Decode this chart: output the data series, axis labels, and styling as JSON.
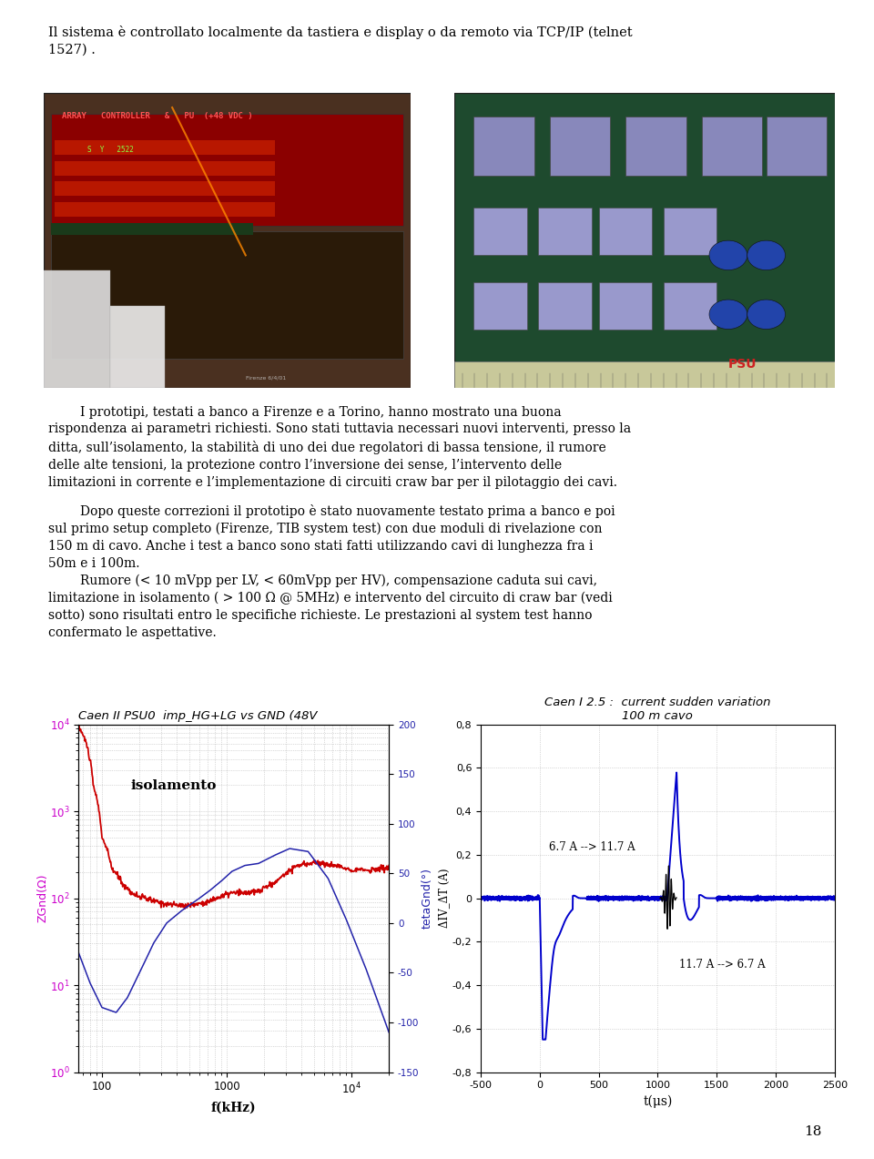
{
  "page_bg": "#ffffff",
  "page_number": "18",
  "top_text": "Il sistema è controllato localmente da tastiera e display o da remoto via TCP/IP (telnet\n1527) .",
  "para1_line1": "        I prototipi, testati a banco a Firenze e a Torino, hanno mostrato una buona",
  "para1_line2": "rispondenza ai parametri richiesti. Sono stati tuttavia necessari nuovi interventi, presso la",
  "para1_line3": "ditta, sull’isolamento, la stabilità di uno dei due regolatori di bassa tensione, il rumore",
  "para1_line4": "delle alte tensioni, la protezione contro l’inversione dei sense, l’intervento delle",
  "para1_line5": "limitazioni in corrente e l’implementazione di circuiti craw bar per il pilotaggio dei cavi.",
  "para2_line1": "        Dopo queste correzioni il prototipo è stato nuovamente testato prima a banco e poi",
  "para2_line2": "sul primo setup completo (Firenze, TIB system test) con due moduli di rivelazione con",
  "para2_line3": "150 m di cavo. Anche i test a banco sono stati fatti utilizzando cavi di lunghezza fra i",
  "para2_line4": "50m e i 100m.",
  "para3_line1": "        Rumore (< 10 mVpp per LV, < 60mVpp per HV), compensazione caduta sui cavi,",
  "para3_line2": "limitazione in isolamento ( > 100 Ω @ 5MHz) e intervento del circuito di craw bar (vedi",
  "para3_line3": "sotto) sono risultati entro le specifiche richieste. Le prestazioni al system test hanno",
  "para3_line4": "confermato le aspettative.",
  "chart1_title": "Caen II PSU0  imp_HG+LG vs GND (48V",
  "chart1_ylabel_left": "ZGnd(Ω)",
  "chart1_ylabel_right": "tetaGnd(°)",
  "chart1_xlabel": "f(kHz)",
  "chart1_annotation": "isolamento",
  "chart2_title": "Caen I 2.5 :  current sudden variation",
  "chart2_subtitle": "100 m cavo",
  "chart2_ylabel": "ΔIV_ΔT (A)",
  "chart2_xlabel": "t(μs)",
  "chart2_annotation1": "6.7 A --> 11.7 A",
  "chart2_annotation2": "11.7 A --> 6.7 A",
  "page_number_val": "18"
}
